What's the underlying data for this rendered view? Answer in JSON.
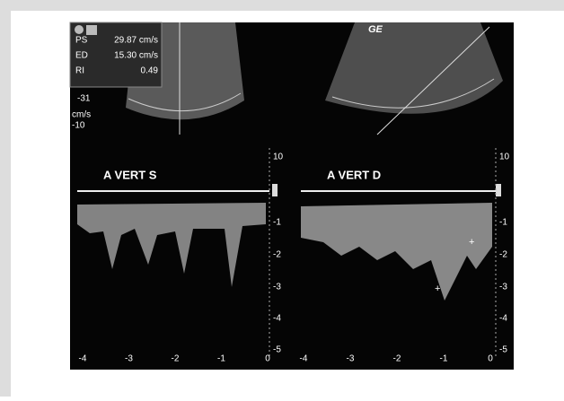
{
  "logo": "GE",
  "measurements": [
    {
      "label": "PS",
      "value": "29.87 cm/s"
    },
    {
      "label": "ED",
      "value": "15.30 cm/s"
    },
    {
      "label": "RI",
      "value": "0.49"
    }
  ],
  "left_panel": {
    "label": "A VERT S",
    "scale_top": "-31",
    "unit": "cm/s",
    "scale_min": "-10",
    "x_ticks": [
      "-4",
      "-3",
      "-2",
      "-1",
      "0"
    ],
    "y_ticks": [
      "10",
      "-1",
      "-2",
      "-3",
      "-4",
      "-5"
    ]
  },
  "right_panel": {
    "label": "A VERT D",
    "x_ticks": [
      "-4",
      "-3",
      "-2",
      "-1",
      "0"
    ],
    "y_ticks": [
      "10",
      "-1",
      "-2",
      "-3",
      "-4",
      "-5"
    ]
  }
}
